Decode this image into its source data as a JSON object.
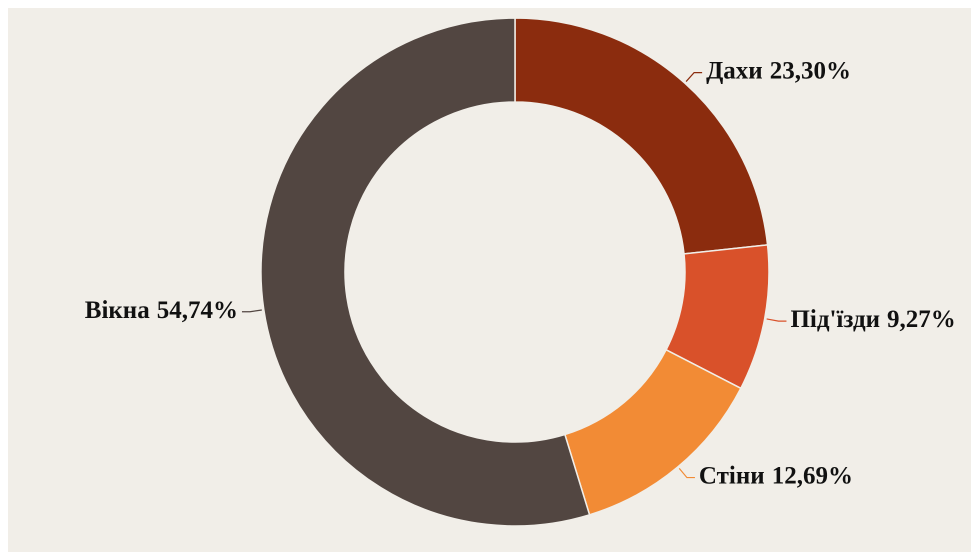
{
  "chart_data": {
    "type": "donut",
    "categories": [
      "Дахи",
      "Під'їзди",
      "Стіни",
      "Вікна"
    ],
    "values": [
      23.3,
      9.27,
      12.69,
      54.74
    ],
    "value_labels": [
      "23,30%",
      "9,27%",
      "12,69%",
      "54,74%"
    ],
    "colors": [
      "#8b2c0e",
      "#d9512a",
      "#f28b35",
      "#524641"
    ]
  }
}
